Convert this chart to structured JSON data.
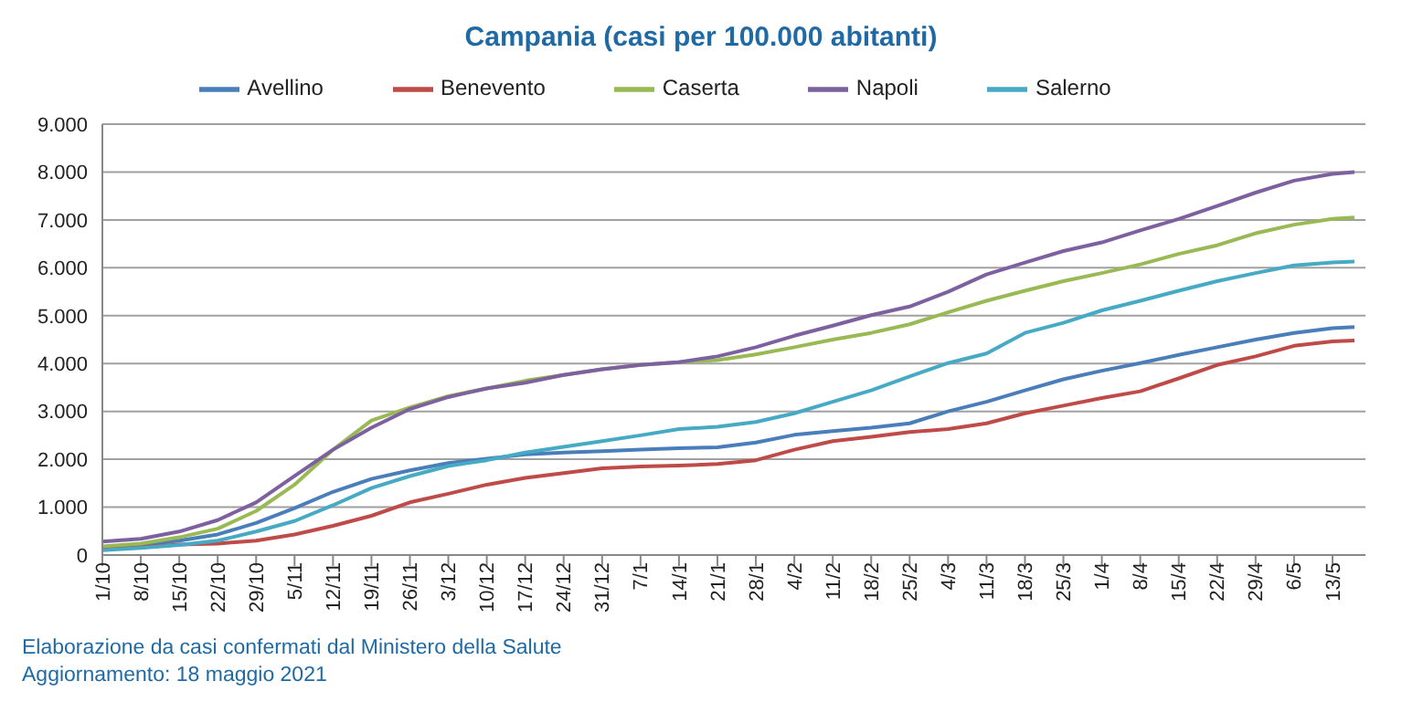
{
  "chart_data": {
    "type": "line",
    "title": "Campania (casi per 100.000 abitanti)",
    "x": [
      "2020-10-01",
      "2020-10-08",
      "2020-10-15",
      "2020-10-22",
      "2020-10-29",
      "2020-11-05",
      "2020-11-12",
      "2020-11-19",
      "2020-11-26",
      "2020-12-03",
      "2020-12-10",
      "2020-12-17",
      "2020-12-24",
      "2020-12-31",
      "2021-01-07",
      "2021-01-14",
      "2021-01-21",
      "2021-01-28",
      "2021-02-04",
      "2021-02-11",
      "2021-02-18",
      "2021-02-25",
      "2021-03-04",
      "2021-03-11",
      "2021-03-18",
      "2021-03-25",
      "2021-04-01",
      "2021-04-08",
      "2021-04-15",
      "2021-04-22",
      "2021-04-29",
      "2021-05-06",
      "2021-05-13",
      "2021-05-17"
    ],
    "series": [
      {
        "name": "Avellino",
        "color": "#4a7ebb",
        "values": [
          150,
          210,
          300,
          430,
          670,
          980,
          1320,
          1590,
          1770,
          1920,
          2010,
          2100,
          2140,
          2170,
          2200,
          2230,
          2250,
          2350,
          2510,
          2590,
          2660,
          2750,
          3000,
          3200,
          3440,
          3670,
          3850,
          4010,
          4180,
          4340,
          4500,
          4640,
          4740,
          4760
        ]
      },
      {
        "name": "Benevento",
        "color": "#be4b48",
        "values": [
          120,
          160,
          220,
          240,
          300,
          430,
          610,
          820,
          1100,
          1280,
          1470,
          1610,
          1710,
          1810,
          1850,
          1870,
          1900,
          1980,
          2200,
          2380,
          2470,
          2570,
          2630,
          2750,
          2960,
          3120,
          3280,
          3420,
          3690,
          3970,
          4150,
          4370,
          4460,
          4480
        ]
      },
      {
        "name": "Caserta",
        "color": "#98b954",
        "values": [
          180,
          240,
          370,
          550,
          920,
          1470,
          2200,
          2810,
          3080,
          3320,
          3480,
          3640,
          3760,
          3880,
          3970,
          4030,
          4070,
          4190,
          4340,
          4500,
          4640,
          4820,
          5070,
          5310,
          5520,
          5720,
          5890,
          6070,
          6290,
          6470,
          6720,
          6900,
          7020,
          7050
        ]
      },
      {
        "name": "Napoli",
        "color": "#7d60a0",
        "values": [
          280,
          340,
          490,
          730,
          1100,
          1650,
          2200,
          2660,
          3050,
          3300,
          3480,
          3600,
          3760,
          3880,
          3970,
          4030,
          4150,
          4340,
          4580,
          4790,
          5010,
          5190,
          5500,
          5860,
          6110,
          6350,
          6530,
          6780,
          7020,
          7290,
          7570,
          7820,
          7960,
          8000
        ]
      },
      {
        "name": "Salerno",
        "color": "#46aac5",
        "values": [
          100,
          150,
          210,
          300,
          490,
          710,
          1040,
          1400,
          1650,
          1860,
          1980,
          2140,
          2260,
          2380,
          2500,
          2630,
          2680,
          2780,
          2960,
          3200,
          3440,
          3730,
          4010,
          4210,
          4640,
          4850,
          5110,
          5310,
          5520,
          5720,
          5890,
          6050,
          6110,
          6130
        ]
      }
    ],
    "xlim": [
      "2020-10-01",
      "2021-05-19"
    ],
    "xticks": [
      {
        "value": "2020-10-01",
        "label": "1/10"
      },
      {
        "value": "2020-10-08",
        "label": "8/10"
      },
      {
        "value": "2020-10-15",
        "label": "15/10"
      },
      {
        "value": "2020-10-22",
        "label": "22/10"
      },
      {
        "value": "2020-10-29",
        "label": "29/10"
      },
      {
        "value": "2020-11-05",
        "label": "5/11"
      },
      {
        "value": "2020-11-12",
        "label": "12/11"
      },
      {
        "value": "2020-11-19",
        "label": "19/11"
      },
      {
        "value": "2020-11-26",
        "label": "26/11"
      },
      {
        "value": "2020-12-03",
        "label": "3/12"
      },
      {
        "value": "2020-12-10",
        "label": "10/12"
      },
      {
        "value": "2020-12-17",
        "label": "17/12"
      },
      {
        "value": "2020-12-24",
        "label": "24/12"
      },
      {
        "value": "2020-12-31",
        "label": "31/12"
      },
      {
        "value": "2021-01-07",
        "label": "7/1"
      },
      {
        "value": "2021-01-14",
        "label": "14/1"
      },
      {
        "value": "2021-01-21",
        "label": "21/1"
      },
      {
        "value": "2021-01-28",
        "label": "28/1"
      },
      {
        "value": "2021-02-04",
        "label": "4/2"
      },
      {
        "value": "2021-02-11",
        "label": "11/2"
      },
      {
        "value": "2021-02-18",
        "label": "18/2"
      },
      {
        "value": "2021-02-25",
        "label": "25/2"
      },
      {
        "value": "2021-03-04",
        "label": "4/3"
      },
      {
        "value": "2021-03-11",
        "label": "11/3"
      },
      {
        "value": "2021-03-18",
        "label": "18/3"
      },
      {
        "value": "2021-03-25",
        "label": "25/3"
      },
      {
        "value": "2021-04-01",
        "label": "1/4"
      },
      {
        "value": "2021-04-08",
        "label": "8/4"
      },
      {
        "value": "2021-04-15",
        "label": "15/4"
      },
      {
        "value": "2021-04-22",
        "label": "22/4"
      },
      {
        "value": "2021-04-29",
        "label": "29/4"
      },
      {
        "value": "2021-05-06",
        "label": "6/5"
      },
      {
        "value": "2021-05-13",
        "label": "13/5"
      }
    ],
    "ylim": [
      0,
      9000
    ],
    "yticks": [
      {
        "value": 0,
        "label": "0"
      },
      {
        "value": 1000,
        "label": "1.000"
      },
      {
        "value": 2000,
        "label": "2.000"
      },
      {
        "value": 3000,
        "label": "3.000"
      },
      {
        "value": 4000,
        "label": "4.000"
      },
      {
        "value": 5000,
        "label": "5.000"
      },
      {
        "value": 6000,
        "label": "6.000"
      },
      {
        "value": 7000,
        "label": "7.000"
      },
      {
        "value": 8000,
        "label": "8.000"
      },
      {
        "value": 9000,
        "label": "9.000"
      }
    ],
    "grid": "y",
    "legend": "top",
    "marker": "none",
    "line_style": "solid",
    "annotations": [
      "Elaborazione da casi confermati dal Ministero della Salute",
      "Aggiornamento: 18 maggio 2021"
    ]
  }
}
